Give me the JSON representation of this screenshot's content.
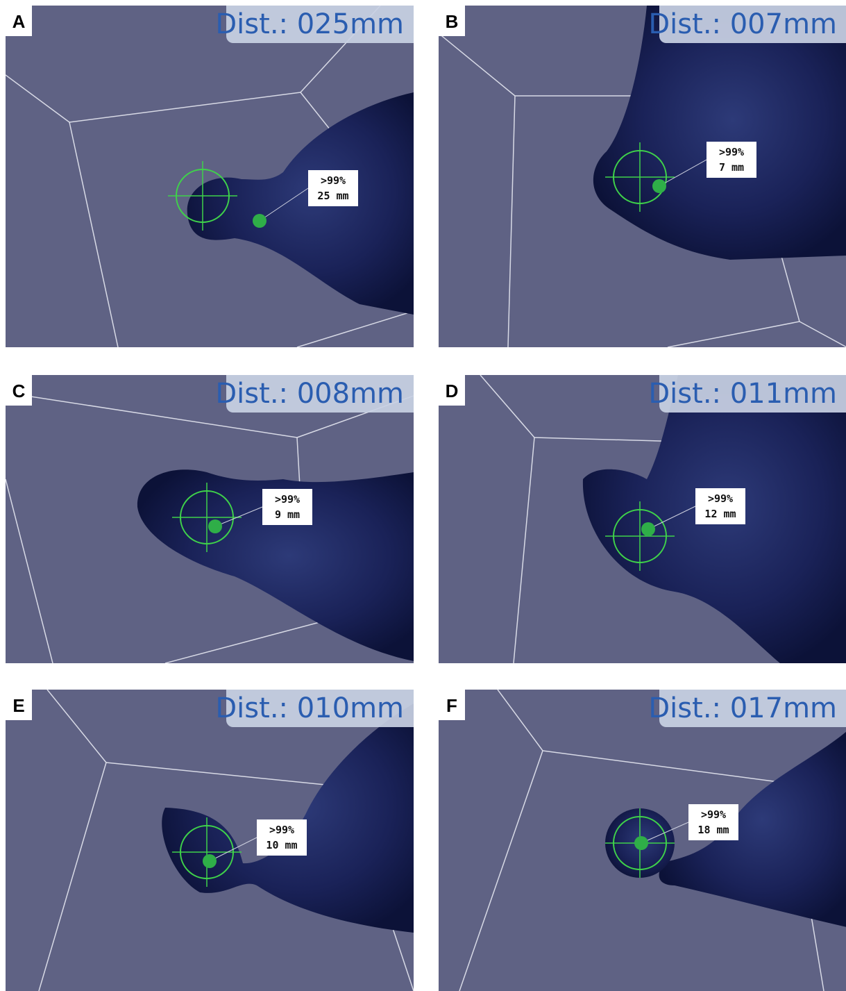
{
  "panels": [
    {
      "letter": "A",
      "distance": "Dist.: 025mm",
      "probability": ">99%",
      "target_distance": "25 mm"
    },
    {
      "letter": "B",
      "distance": "Dist.: 007mm",
      "probability": ">99%",
      "target_distance": "7 mm"
    },
    {
      "letter": "C",
      "distance": "Dist.: 008mm",
      "probability": ">99%",
      "target_distance": "9 mm"
    },
    {
      "letter": "D",
      "distance": "Dist.: 011mm",
      "probability": ">99%",
      "target_distance": "12 mm"
    },
    {
      "letter": "E",
      "distance": "Dist.: 010mm",
      "probability": ">99%",
      "target_distance": "10 mm"
    },
    {
      "letter": "F",
      "distance": "Dist.: 017mm",
      "probability": ">99%",
      "target_distance": "18 mm"
    }
  ]
}
